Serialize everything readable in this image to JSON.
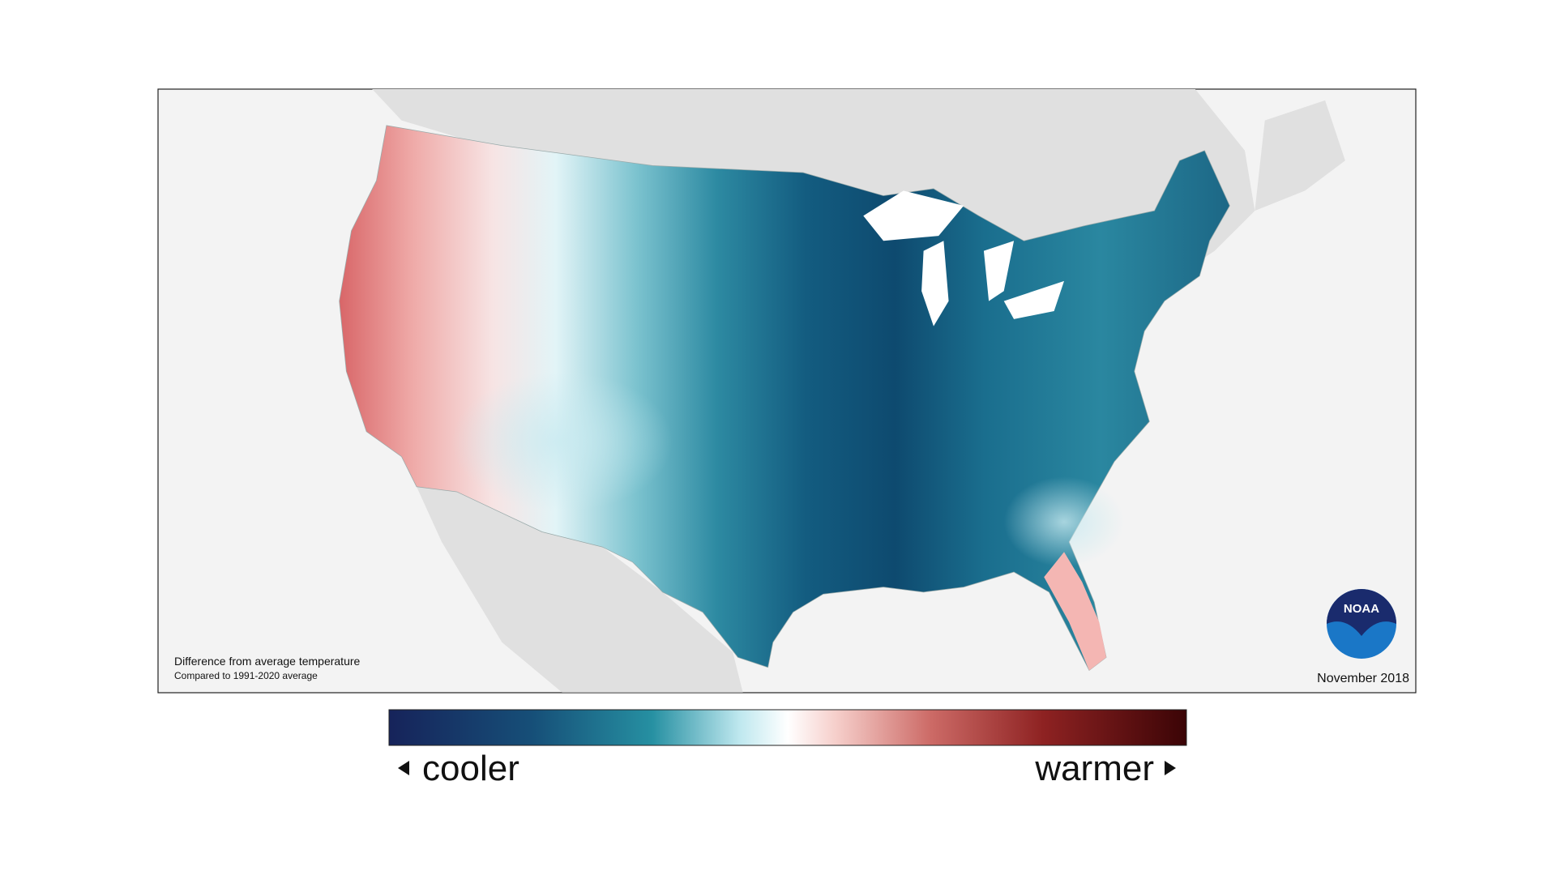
{
  "map": {
    "caption": "Difference from average temperature",
    "subcaption": "Compared to 1991-2020 average",
    "date": "November 2018",
    "logo": "NOAA"
  },
  "legend": {
    "low": "cooler",
    "high": "warmer"
  }
}
